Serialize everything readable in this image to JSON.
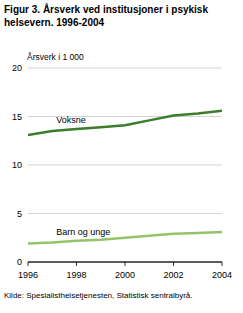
{
  "chart_data": {
    "type": "line",
    "title": "Figur 3. Årsverk ved institusjoner i psykisk helsevern. 1996-2004",
    "y_label": "Årsverk i 1 000",
    "source": "Kilde: Spesialisthelsetjenesten, Statistisk sentralbyrå.",
    "x": [
      1996,
      1997,
      1998,
      1999,
      2000,
      2001,
      2002,
      2003,
      2004
    ],
    "series": [
      {
        "name": "Voksne",
        "color": "#3b7d2a",
        "values": [
          13.1,
          13.5,
          13.7,
          13.9,
          14.1,
          14.6,
          15.1,
          15.3,
          15.6
        ]
      },
      {
        "name": "Barn og unge",
        "color": "#94c46a",
        "values": [
          1.9,
          2.0,
          2.2,
          2.3,
          2.5,
          2.7,
          2.9,
          3.0,
          3.1
        ]
      }
    ],
    "xlim": [
      1996,
      2004
    ],
    "xticks": [
      1996,
      1998,
      2000,
      2002,
      2004
    ],
    "ylim": [
      0,
      20
    ],
    "yticks": [
      0,
      5,
      10,
      15,
      20
    ],
    "grid": true
  }
}
